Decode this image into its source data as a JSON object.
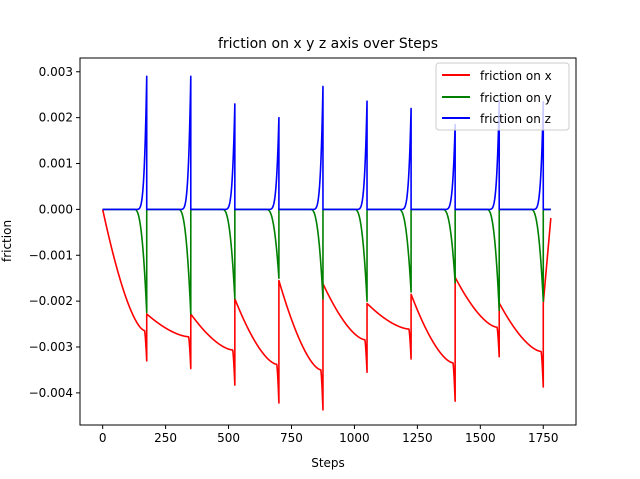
{
  "chart_data": {
    "type": "line",
    "title": "friction on x y z axis over Steps",
    "xlabel": "Steps",
    "ylabel": "friction",
    "xlim": [
      -90,
      1880
    ],
    "ylim": [
      -0.0047,
      0.0033
    ],
    "x_ticks": [
      0,
      250,
      500,
      750,
      1000,
      1250,
      1500,
      1750
    ],
    "x_tick_labels": [
      "0",
      "250",
      "500",
      "750",
      "1000",
      "1250",
      "1500",
      "1750"
    ],
    "y_ticks": [
      -0.004,
      -0.003,
      -0.002,
      -0.001,
      0.0,
      0.001,
      0.002,
      0.003
    ],
    "y_tick_labels": [
      "−0.004",
      "−0.003",
      "−0.002",
      "−0.001",
      "0.000",
      "0.001",
      "0.002",
      "0.003"
    ],
    "grid": false,
    "legend_position": "top-right",
    "episode_length": 175,
    "episode_count": 10,
    "x_end": 1780,
    "series": [
      {
        "name": "friction on x",
        "color": "#ff0000",
        "episode_minimums": [
          -0.0033,
          -0.00347,
          -0.00383,
          -0.00422,
          -0.00437,
          -0.00355,
          -0.00326,
          -0.00418,
          -0.00321,
          -0.00387
        ],
        "episode_jump_values": [
          -0.00228,
          -0.00228,
          -0.00195,
          -0.00155,
          -0.00162,
          -0.00205,
          -0.00185,
          -0.00148,
          -0.00204,
          -0.00205
        ],
        "final_value": -0.00019
      },
      {
        "name": "friction on y",
        "color": "#008000",
        "episode_minimums": [
          -0.00225,
          -0.00228,
          -0.00195,
          -0.0015,
          -0.00195,
          -0.002,
          -0.0018,
          -0.0016,
          -0.0022,
          -0.002
        ]
      },
      {
        "name": "friction on z",
        "color": "#0000ff",
        "episode_peaks": [
          0.0029,
          0.0029,
          0.0023,
          0.002,
          0.00268,
          0.00236,
          0.0022,
          0.00185,
          0.00238,
          0.00235
        ]
      }
    ]
  }
}
